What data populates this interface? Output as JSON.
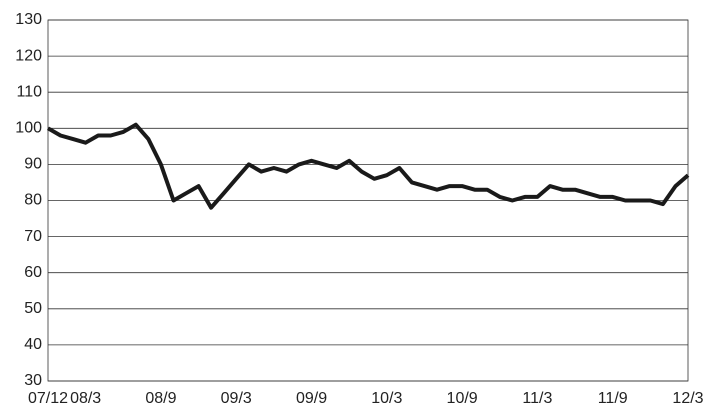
{
  "chart_data": {
    "type": "line",
    "categories": [
      "07/12",
      null,
      null,
      "08/3",
      null,
      null,
      null,
      null,
      null,
      "08/9",
      null,
      null,
      null,
      null,
      null,
      "09/3",
      null,
      null,
      null,
      null,
      null,
      "09/9",
      null,
      null,
      null,
      null,
      null,
      "10/3",
      null,
      null,
      null,
      null,
      null,
      "10/9",
      null,
      null,
      null,
      null,
      null,
      "11/3",
      null,
      null,
      null,
      null,
      null,
      "11/9",
      null,
      null,
      null,
      null,
      null,
      "12/3"
    ],
    "values": [
      100,
      98,
      97,
      96,
      98,
      98,
      99,
      101,
      97,
      90,
      80,
      82,
      84,
      78,
      82,
      86,
      90,
      88,
      89,
      88,
      90,
      91,
      90,
      89,
      91,
      88,
      86,
      87,
      89,
      85,
      84,
      83,
      84,
      84,
      83,
      83,
      81,
      80,
      81,
      81,
      84,
      83,
      83,
      82,
      81,
      81,
      80,
      80,
      80,
      79,
      84,
      87
    ],
    "color": "#1a1a1a",
    "ylim": [
      30,
      130
    ],
    "yticks": [
      30,
      40,
      50,
      60,
      70,
      80,
      90,
      100,
      110,
      120,
      130
    ],
    "grid": true
  }
}
